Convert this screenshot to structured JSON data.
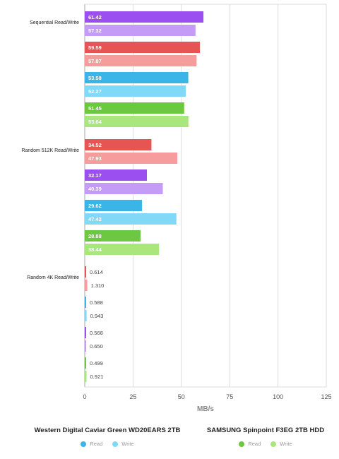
{
  "colors": {
    "wd_read": "#3bb4e8",
    "wd_write": "#7fd9f7",
    "samsung_read": "#6cc840",
    "samsung_write": "#a9e67c",
    "purple_read": "#9b4ff0",
    "purple_write": "#c49cf6",
    "red_read": "#e65454",
    "red_write": "#f79c9c",
    "grid": "#dddddd",
    "axis": "#aaaaaa"
  },
  "legend": [
    {
      "title": "Western Digital Caviar Green WD20EARS 2TB",
      "items": [
        {
          "label": "Read",
          "color": "#3bb4e8"
        },
        {
          "label": "Write",
          "color": "#7fd9f7"
        }
      ]
    },
    {
      "title": "SAMSUNG Spinpoint F3EG 2TB HDD",
      "items": [
        {
          "label": "Read",
          "color": "#6cc840"
        },
        {
          "label": "Write",
          "color": "#a9e67c"
        }
      ]
    }
  ],
  "chart_data": {
    "type": "bar",
    "orientation": "horizontal",
    "xlabel": "MB/s",
    "xlim": [
      0,
      125
    ],
    "xticks": [
      0,
      25,
      50,
      75,
      100,
      125
    ],
    "grid": true,
    "legend_position": "bottom",
    "categories": [
      "Sequential Read/Write",
      "Random 512K Read/Write",
      "Random 4K Read/Write"
    ],
    "groups": [
      {
        "category": "Sequential Read/Write",
        "bars": [
          {
            "read": 61.42,
            "write": 57.32,
            "read_label": "61.42",
            "write_label": "57.32",
            "palette": "purple"
          },
          {
            "read": 59.59,
            "write": 57.87,
            "read_label": "59.59",
            "write_label": "57.87",
            "palette": "red"
          },
          {
            "read": 53.58,
            "write": 52.27,
            "read_label": "53.58",
            "write_label": "52.27",
            "palette": "wd"
          },
          {
            "read": 51.45,
            "write": 53.64,
            "read_label": "51.45",
            "write_label": "53.64",
            "palette": "samsung"
          }
        ]
      },
      {
        "category": "Random 512K Read/Write",
        "bars": [
          {
            "read": 34.52,
            "write": 47.93,
            "read_label": "34.52",
            "write_label": "47.93",
            "palette": "red"
          },
          {
            "read": 32.17,
            "write": 40.39,
            "read_label": "32.17",
            "write_label": "40.39",
            "palette": "purple"
          },
          {
            "read": 29.62,
            "write": 47.42,
            "read_label": "29.62",
            "write_label": "47.42",
            "palette": "wd"
          },
          {
            "read": 28.88,
            "write": 38.44,
            "read_label": "28.88",
            "write_label": "38.44",
            "palette": "samsung"
          }
        ]
      },
      {
        "category": "Random 4K Read/Write",
        "bars": [
          {
            "read": 0.614,
            "write": 1.31,
            "read_label": "0.614",
            "write_label": "1.310",
            "palette": "red"
          },
          {
            "read": 0.588,
            "write": 0.943,
            "read_label": "0.588",
            "write_label": "0.943",
            "palette": "wd"
          },
          {
            "read": 0.568,
            "write": 0.65,
            "read_label": "0.568",
            "write_label": "0.650",
            "palette": "purple"
          },
          {
            "read": 0.499,
            "write": 0.921,
            "read_label": "0.499",
            "write_label": "0.921",
            "palette": "samsung"
          }
        ]
      }
    ]
  }
}
